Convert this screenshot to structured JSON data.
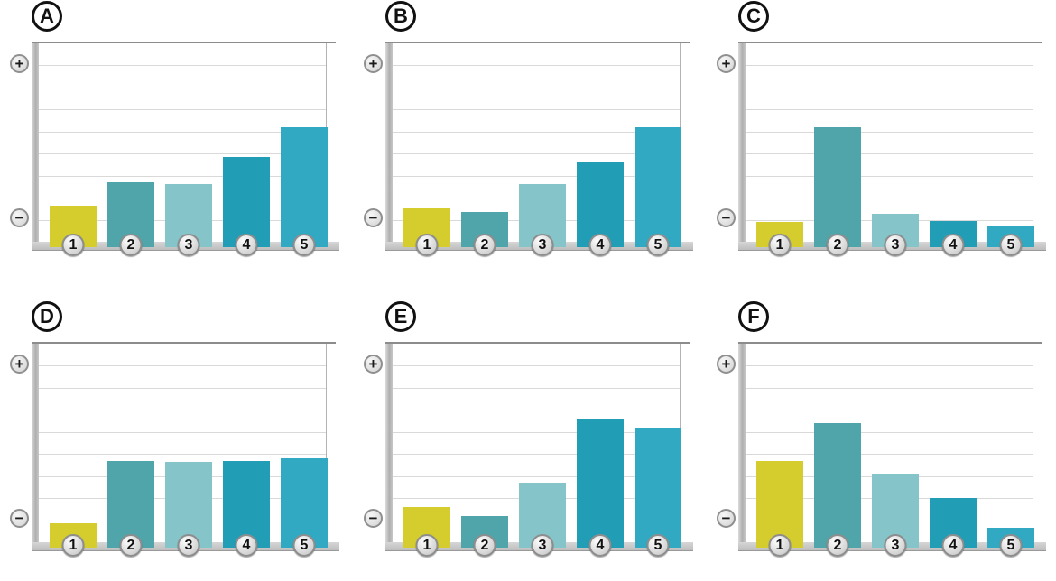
{
  "figure": {
    "description": "Six bar-chart panels labeled A to F, each showing five numbered bars on an unlabeled vertical scale ranging from a minus endpoint (bottom) to a plus endpoint (top)",
    "y_axis": {
      "plus_symbol": "+",
      "minus_symbol": "−",
      "plus_icon": "plus-circle-icon",
      "minus_icon": "minus-circle-icon"
    },
    "bar_colors": [
      "#d5cc2e",
      "#4fa5a9",
      "#85c5ca",
      "#229db6",
      "#32a9c3"
    ],
    "gridline_count": 8
  },
  "chart_data": [
    {
      "type": "bar",
      "panel": "A",
      "categories": [
        "1",
        "2",
        "3",
        "4",
        "5"
      ],
      "values": [
        1.65,
        2.7,
        2.6,
        3.85,
        5.2
      ],
      "title": "",
      "xlabel": "",
      "ylabel": "",
      "ylim": [
        0,
        9
      ],
      "grid": true,
      "legend": "none"
    },
    {
      "type": "bar",
      "panel": "B",
      "categories": [
        "1",
        "2",
        "3",
        "4",
        "5"
      ],
      "values": [
        1.5,
        1.35,
        2.6,
        3.6,
        5.2
      ],
      "title": "",
      "xlabel": "",
      "ylabel": "",
      "ylim": [
        0,
        9
      ],
      "grid": true,
      "legend": "none"
    },
    {
      "type": "bar",
      "panel": "C",
      "categories": [
        "1",
        "2",
        "3",
        "4",
        "5"
      ],
      "values": [
        0.9,
        5.2,
        1.25,
        0.95,
        0.7
      ],
      "title": "",
      "xlabel": "",
      "ylabel": "",
      "ylim": [
        0,
        9
      ],
      "grid": true,
      "legend": "none"
    },
    {
      "type": "bar",
      "panel": "D",
      "categories": [
        "1",
        "2",
        "3",
        "4",
        "5"
      ],
      "values": [
        0.85,
        3.7,
        3.65,
        3.7,
        3.8
      ],
      "title": "",
      "xlabel": "",
      "ylabel": "",
      "ylim": [
        0,
        9
      ],
      "grid": true,
      "legend": "none"
    },
    {
      "type": "bar",
      "panel": "E",
      "categories": [
        "1",
        "2",
        "3",
        "4",
        "5"
      ],
      "values": [
        1.6,
        1.2,
        2.7,
        5.6,
        5.2
      ],
      "title": "",
      "xlabel": "",
      "ylabel": "",
      "ylim": [
        0,
        9
      ],
      "grid": true,
      "legend": "none"
    },
    {
      "type": "bar",
      "panel": "F",
      "categories": [
        "1",
        "2",
        "3",
        "4",
        "5"
      ],
      "values": [
        3.7,
        5.4,
        3.1,
        2.0,
        0.65
      ],
      "title": "",
      "xlabel": "",
      "ylabel": "",
      "ylim": [
        0,
        9
      ],
      "grid": true,
      "legend": "none"
    }
  ]
}
